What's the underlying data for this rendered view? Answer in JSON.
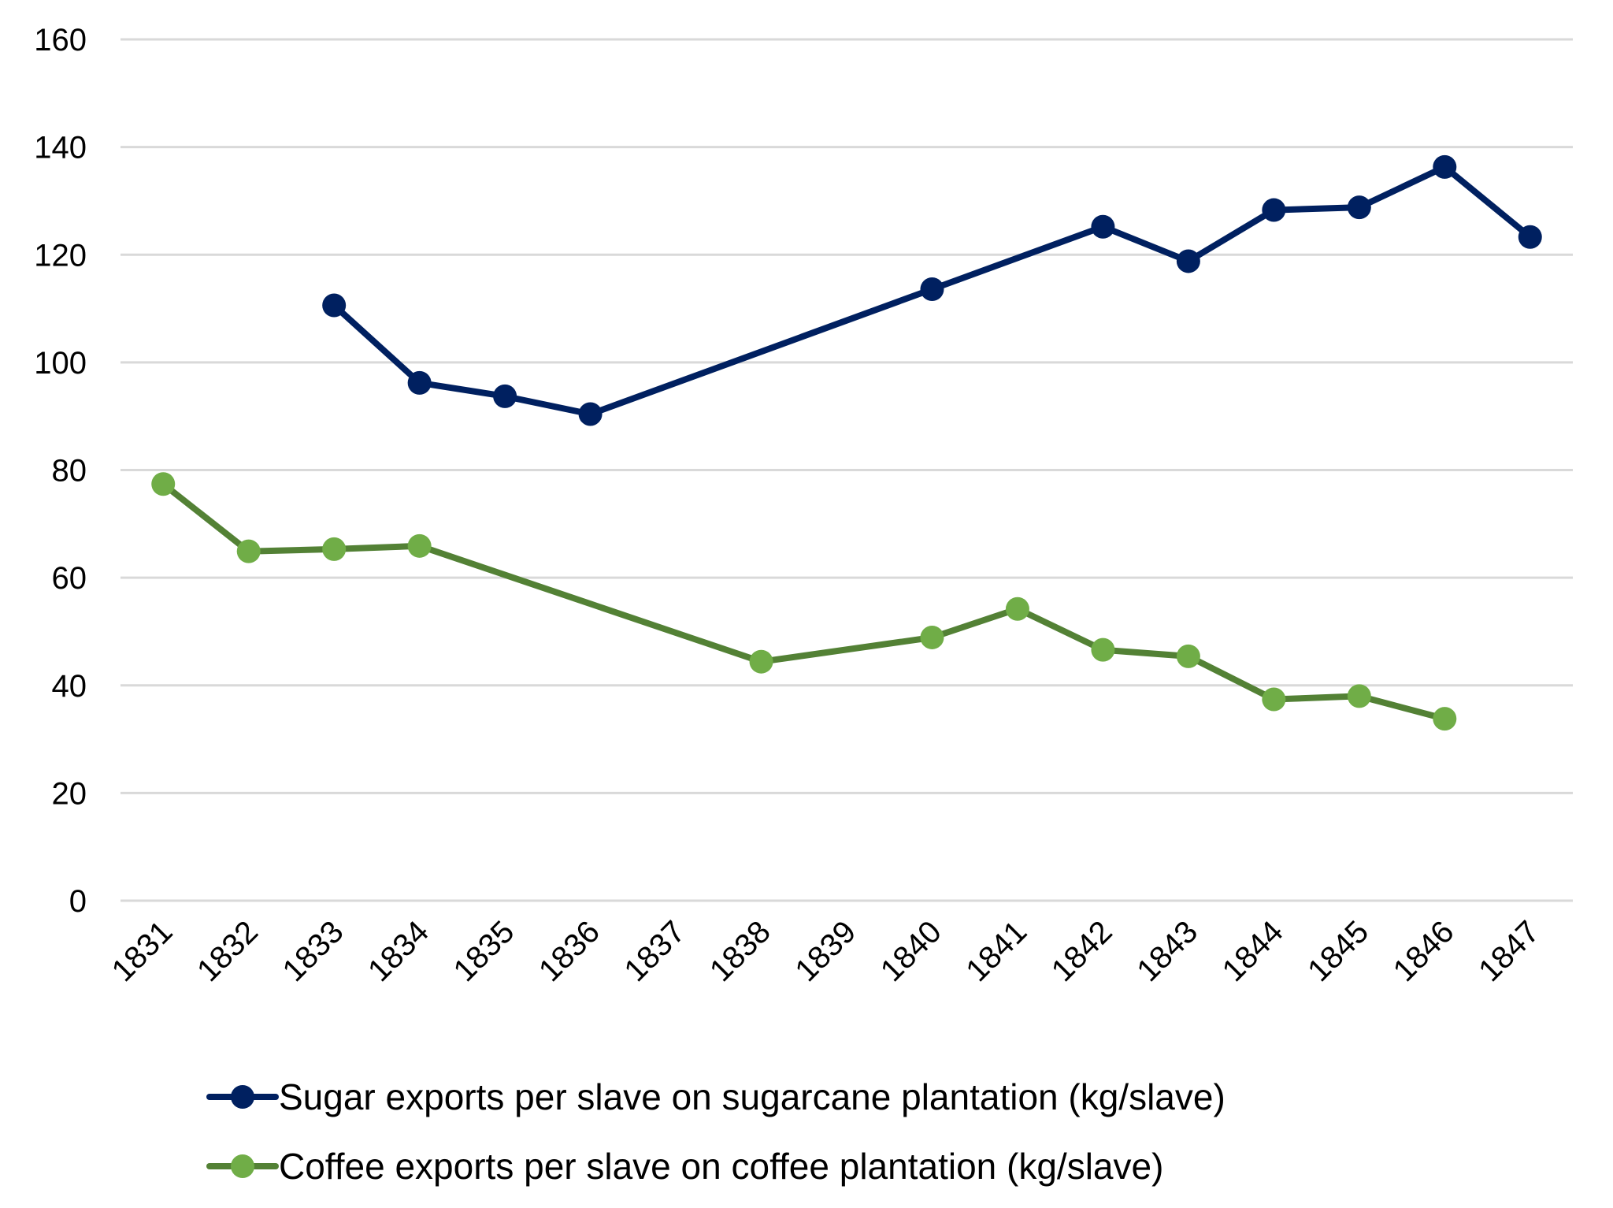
{
  "chart_data": {
    "type": "line",
    "title": "",
    "xlabel": "",
    "ylabel": "",
    "categories": [
      "1831",
      "1832",
      "1833",
      "1834",
      "1835",
      "1836",
      "1837",
      "1838",
      "1839",
      "1840",
      "1841",
      "1842",
      "1843",
      "1844",
      "1845",
      "1846",
      "1847"
    ],
    "ylim": [
      0,
      160
    ],
    "yticks": [
      "0",
      "20",
      "40",
      "60",
      "80",
      "100",
      "120",
      "140",
      "160"
    ],
    "ytick_values": [
      0,
      20,
      40,
      60,
      80,
      100,
      120,
      140,
      160
    ],
    "grid": true,
    "legend_position": "bottom",
    "series": [
      {
        "name": "Sugar exports per slave on sugarcane plantation (kg/slave)",
        "line_color": "#002060",
        "marker_color": "#002060",
        "values": [
          null,
          null,
          110.6,
          96.2,
          93.7,
          90.4,
          null,
          null,
          null,
          113.6,
          null,
          125.2,
          118.8,
          128.3,
          128.8,
          136.3,
          123.3
        ]
      },
      {
        "name": "Coffee exports per slave on coffee plantation (kg/slave)",
        "line_color": "#538135",
        "marker_color": "#70AD47",
        "values": [
          77.4,
          64.9,
          65.3,
          65.9,
          null,
          null,
          null,
          44.4,
          null,
          48.9,
          54.2,
          46.6,
          45.4,
          37.4,
          38.0,
          33.8,
          null
        ]
      }
    ],
    "gridline_color": "#D9D9D9"
  }
}
